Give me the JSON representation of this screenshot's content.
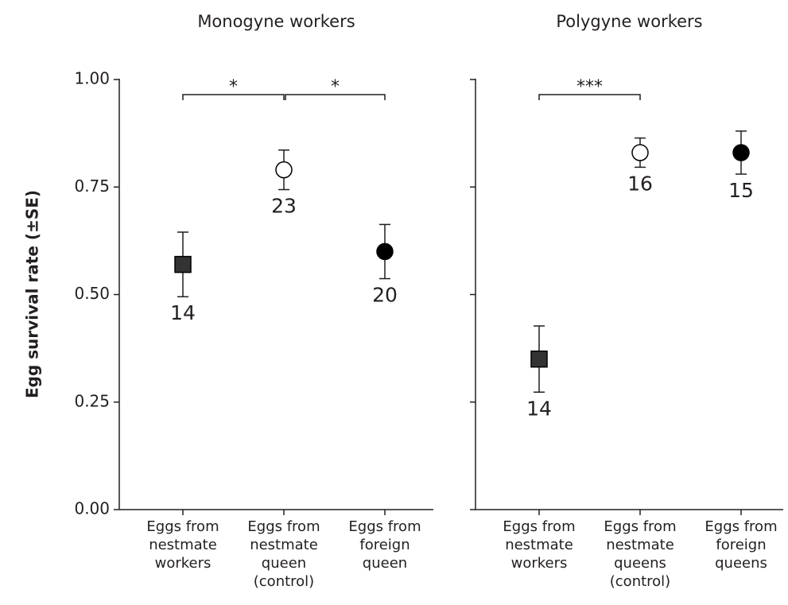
{
  "chart_data": [
    {
      "type": "errorpoint",
      "title": "Monogyne workers",
      "ylabel": "Egg survival rate (±SE)",
      "categories": [
        [
          "Eggs from",
          "nestmate",
          "workers"
        ],
        [
          "Eggs from",
          "nestmate",
          "queen",
          "(control)"
        ],
        [
          "Eggs from",
          "foreign",
          "queen"
        ]
      ],
      "values": [
        0.57,
        0.79,
        0.6
      ],
      "errors": [
        0.075,
        0.046,
        0.063
      ],
      "n": [
        14,
        23,
        20
      ],
      "markers": [
        "square",
        "circle",
        "circle"
      ],
      "marker_fills": [
        "#333333",
        "#ffffff",
        "#000000"
      ],
      "ylim": [
        0,
        1
      ],
      "yticks": [
        {
          "value": 0,
          "label": "0.00"
        },
        {
          "value": 0.25,
          "label": "0.25"
        },
        {
          "value": 0.5,
          "label": "0.50"
        },
        {
          "value": 0.75,
          "label": "0.75"
        },
        {
          "value": 1,
          "label": "1.00"
        }
      ],
      "show_tick_labels": true,
      "brackets": [
        {
          "between": [
            0,
            1
          ],
          "label": "*"
        },
        {
          "between": [
            1,
            2
          ],
          "label": "*"
        }
      ]
    },
    {
      "type": "errorpoint",
      "title": "Polygyne workers",
      "categories": [
        [
          "Eggs from",
          "nestmate",
          "workers"
        ],
        [
          "Eggs from",
          "nestmate",
          "queens",
          "(control)"
        ],
        [
          "Eggs from",
          "foreign",
          "queens"
        ]
      ],
      "values": [
        0.35,
        0.83,
        0.83
      ],
      "errors": [
        0.077,
        0.034,
        0.05
      ],
      "n": [
        14,
        16,
        15
      ],
      "markers": [
        "square",
        "circle",
        "circle"
      ],
      "marker_fills": [
        "#333333",
        "#ffffff",
        "#000000"
      ],
      "ylim": [
        0,
        1
      ],
      "yticks": [
        {
          "value": 0,
          "label": "0.00"
        },
        {
          "value": 0.25,
          "label": "0.25"
        },
        {
          "value": 0.5,
          "label": "0.50"
        },
        {
          "value": 0.75,
          "label": "0.75"
        },
        {
          "value": 1,
          "label": "1.00"
        }
      ],
      "show_tick_labels": false,
      "brackets": [
        {
          "between": [
            0,
            1
          ],
          "label": "***"
        }
      ]
    }
  ]
}
